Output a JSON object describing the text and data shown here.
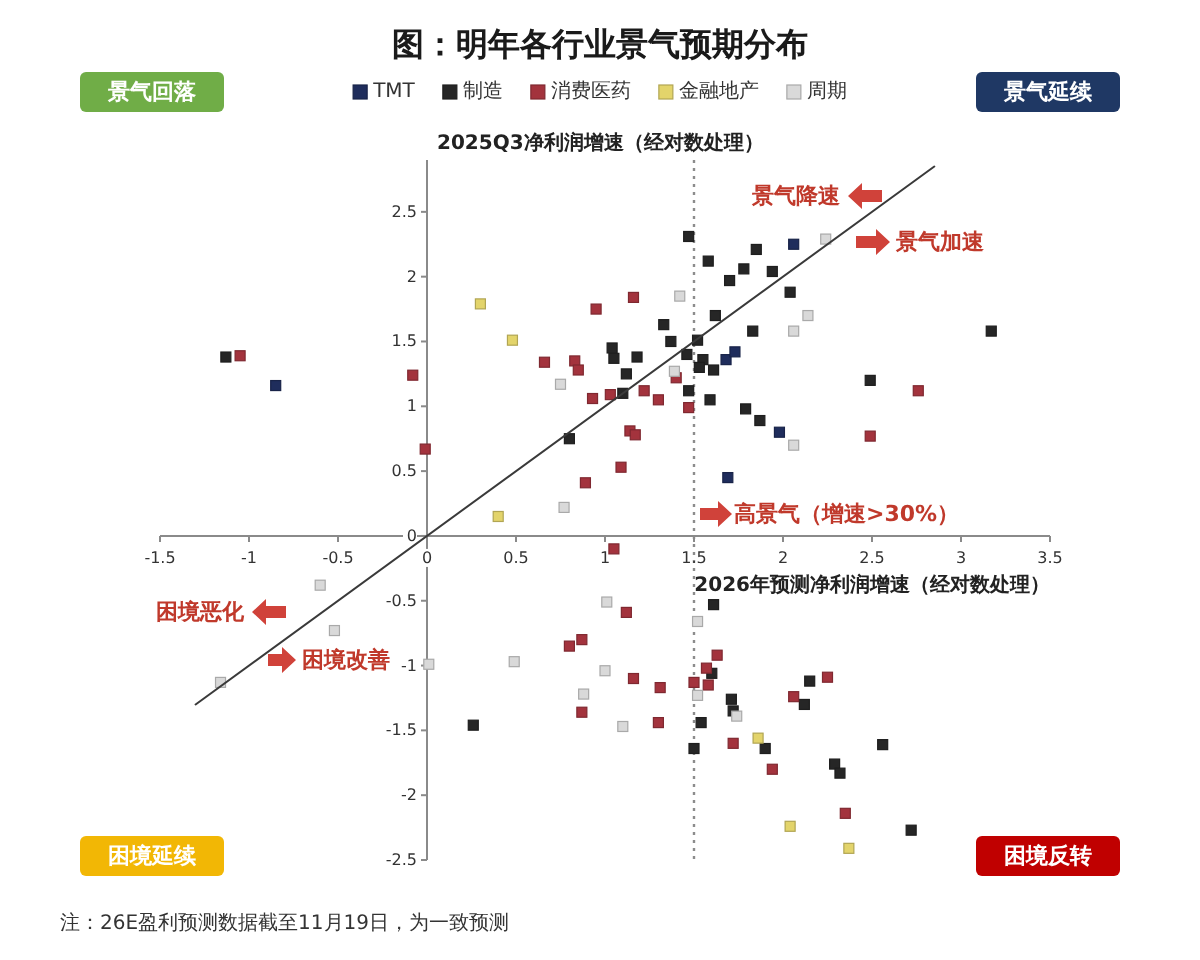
{
  "chart_data": {
    "type": "scatter",
    "title": "图：明年各行业景气预期分布",
    "xlabel": "2026年预测净利润增速（经对数处理）",
    "ylabel": "2025Q3净利润增速（经对数处理）",
    "xlim": [
      -1.5,
      3.5
    ],
    "xticks": [
      -1.5,
      -1,
      -0.5,
      0,
      0.5,
      1,
      1.5,
      2,
      2.5,
      3,
      3.5
    ],
    "ylim": [
      -2.5,
      2.9
    ],
    "yticks": [
      -2.5,
      -2,
      -1.5,
      -1,
      -0.5,
      0,
      0.5,
      1,
      1.5,
      2,
      2.5
    ],
    "legend": "top",
    "marker": "square",
    "series": [
      {
        "name": "TMT",
        "color": "#1f2d5c",
        "x": [
          -0.85,
          2.06,
          1.68,
          1.73,
          1.98,
          1.69
        ],
        "values": [
          1.16,
          2.25,
          1.36,
          1.42,
          0.8,
          0.45
        ]
      },
      {
        "name": "制造",
        "color": "#262626",
        "x": [
          -1.13,
          1.1,
          1.12,
          1.05,
          0.8,
          1.47,
          1.85,
          1.58,
          1.78,
          1.94,
          1.7,
          2.04,
          1.62,
          1.83,
          3.17,
          1.33,
          1.52,
          1.37,
          1.04,
          1.18,
          1.46,
          1.55,
          1.53,
          1.61,
          2.49,
          1.47,
          1.59,
          1.79,
          1.87,
          0.26,
          1.61,
          1.6,
          1.71,
          1.72,
          2.12,
          2.15,
          1.54,
          1.9,
          1.5,
          2.29,
          2.32,
          2.56,
          2.72
        ],
        "values": [
          1.38,
          1.1,
          1.25,
          1.37,
          0.75,
          2.31,
          2.21,
          2.12,
          2.06,
          2.04,
          1.97,
          1.88,
          1.7,
          1.58,
          1.58,
          1.63,
          1.51,
          1.5,
          1.45,
          1.38,
          1.4,
          1.36,
          1.3,
          1.28,
          1.2,
          1.12,
          1.05,
          0.98,
          0.89,
          -1.46,
          -0.53,
          -1.06,
          -1.26,
          -1.35,
          -1.3,
          -1.12,
          -1.44,
          -1.64,
          -1.64,
          -1.76,
          -1.83,
          -1.61,
          -2.27
        ]
      },
      {
        "name": "消费医药",
        "color": "#a3333d",
        "x": [
          -1.05,
          -0.08,
          -0.01,
          0.66,
          0.83,
          0.85,
          0.93,
          1.03,
          0.95,
          1.09,
          0.89,
          1.05,
          1.14,
          1.17,
          1.16,
          2.76,
          1.4,
          1.3,
          1.22,
          1.47,
          2.49,
          1.12,
          0.8,
          0.87,
          0.87,
          1.63,
          1.57,
          1.5,
          1.16,
          1.31,
          1.58,
          2.06,
          2.25,
          1.3,
          1.72,
          1.94,
          2.35
        ],
        "values": [
          1.39,
          1.24,
          0.67,
          1.34,
          1.35,
          1.28,
          1.06,
          1.09,
          1.75,
          0.53,
          0.41,
          -0.1,
          0.81,
          0.78,
          1.84,
          1.12,
          1.22,
          1.05,
          1.12,
          0.99,
          0.77,
          -0.59,
          -0.85,
          -0.8,
          -1.36,
          -0.92,
          -1.02,
          -1.13,
          -1.1,
          -1.17,
          -1.15,
          -1.24,
          -1.09,
          -1.44,
          -1.6,
          -1.8,
          -2.14
        ]
      },
      {
        "name": "金融地产",
        "color": "#e3d46b",
        "x": [
          0.3,
          0.48,
          0.4,
          1.86,
          2.04,
          2.37
        ],
        "values": [
          1.79,
          1.51,
          0.15,
          -1.56,
          -2.24,
          -2.41
        ]
      },
      {
        "name": "周期",
        "color": "#d9d9d9",
        "x": [
          0.75,
          0.77,
          2.24,
          1.42,
          2.14,
          2.06,
          1.39,
          2.06,
          -0.6,
          -0.52,
          -1.16,
          0.01,
          0.49,
          1.01,
          1.0,
          0.88,
          1.1,
          1.52,
          1.52,
          1.74
        ],
        "values": [
          1.17,
          0.22,
          2.29,
          1.85,
          1.7,
          1.58,
          1.27,
          0.7,
          -0.38,
          -0.73,
          -1.13,
          -0.99,
          -0.97,
          -0.51,
          -1.04,
          -1.22,
          -1.47,
          -0.66,
          -1.23,
          -1.39
        ]
      },
      {
        "type": "line",
        "color": "#3a3a3a",
        "marker": "none",
        "x": [
          -1.3,
          2.85
        ],
        "values": [
          -1.3,
          2.85
        ]
      }
    ],
    "ref_lines": [
      {
        "axis": "x",
        "value": 1.5,
        "label": "高景气（增速>30%）",
        "line_style": "dotted",
        "color": "#8c8c8c"
      }
    ],
    "annotations": [
      "景气回落",
      "景气延续",
      "困境延续",
      "困境反转",
      "景气降速",
      "景气加速",
      "困境恶化",
      "困境改善",
      "注：26E盈利预测数据截至11月19日，为一致预测"
    ]
  }
}
